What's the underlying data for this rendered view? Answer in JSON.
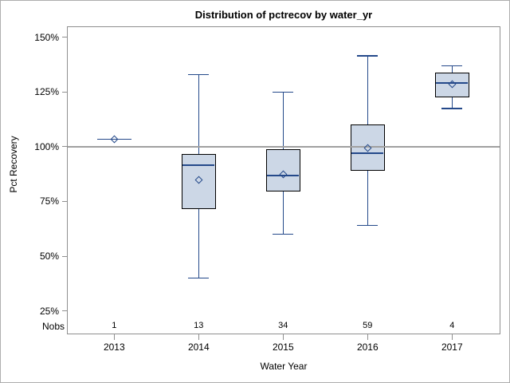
{
  "chart_data": {
    "type": "boxplot",
    "title": "Distribution of pctrecov by water_yr",
    "xlabel": "Water Year",
    "ylabel": "Pct Recovery",
    "categories": [
      "2013",
      "2014",
      "2015",
      "2016",
      "2017"
    ],
    "nobs_label": "Nobs",
    "nobs": [
      "1",
      "13",
      "34",
      "59",
      "4"
    ],
    "y_tick_values": [
      25,
      50,
      75,
      100,
      125,
      150
    ],
    "y_tick_suffix": "%",
    "ylim": [
      14.3,
      155
    ],
    "grid": false,
    "legend": "none",
    "reference_line_y": 100,
    "series": [
      {
        "category": "2013",
        "n": 1,
        "min": 103.5,
        "q1": 103.5,
        "median": 103.5,
        "q3": 103.5,
        "max": 103.5,
        "mean": 103.5
      },
      {
        "category": "2014",
        "n": 13,
        "min": 40,
        "q1": 71.5,
        "median": 91.5,
        "q3": 96.5,
        "max": 133,
        "mean": 85
      },
      {
        "category": "2015",
        "n": 34,
        "min": 60,
        "q1": 79.5,
        "median": 87,
        "q3": 99,
        "max": 125,
        "mean": 87.5
      },
      {
        "category": "2016",
        "n": 59,
        "min": 64,
        "q1": 89,
        "median": 97,
        "q3": 110,
        "max": 141.5,
        "mean": 99.5
      },
      {
        "category": "2017",
        "n": 4,
        "min": 117.5,
        "q1": 122.5,
        "median": 129,
        "q3": 134,
        "max": 137,
        "mean": 128.5
      }
    ],
    "colors": {
      "box_fill": "#ccd7e6",
      "box_border": "#000000",
      "line": "#24498a",
      "reference": "#a0a0a0",
      "frame": "#8f8f8f",
      "text": "#000000",
      "background": "#ffffff",
      "outer_border": "#aeaeae"
    }
  }
}
